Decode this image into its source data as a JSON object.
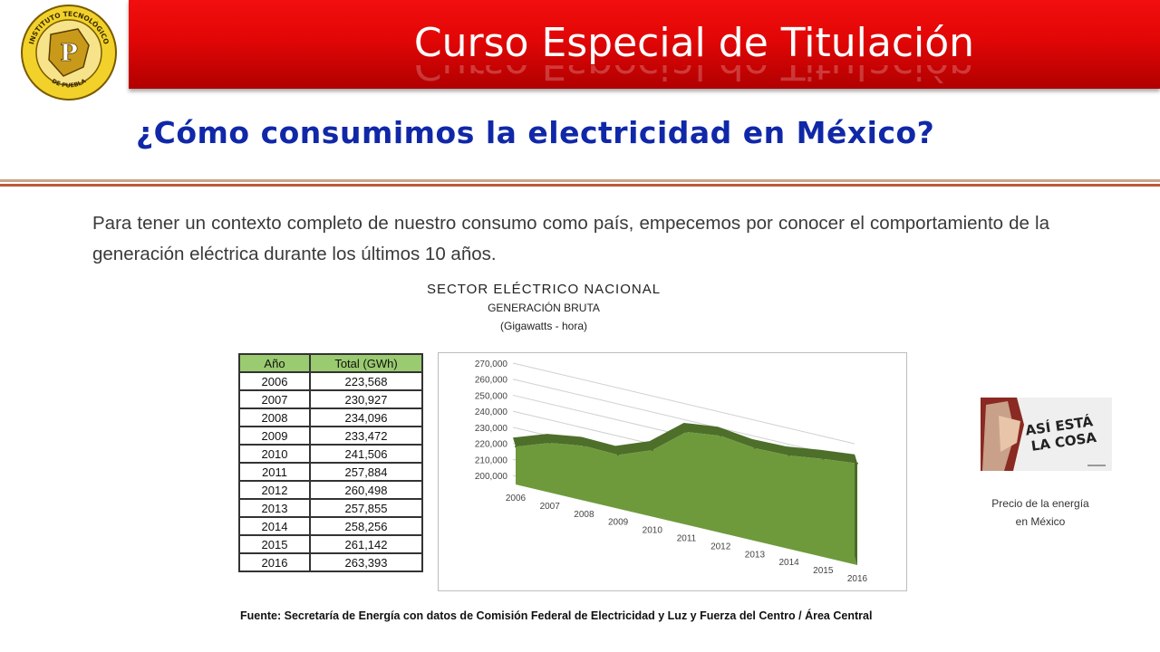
{
  "header": {
    "title": "Curso Especial de Titulación",
    "logo_text_top": "INSTITUTO TECNOLÓGICO",
    "logo_text_bottom": "DE PUEBLA"
  },
  "subtitle": "¿Cómo consumimos la electricidad en México?",
  "paragraph": "Para tener un contexto completo de nuestro consumo como país, empecemos por conocer el comportamiento de la generación eléctrica durante los últimos 10 años.",
  "figure": {
    "title": "SECTOR ELÉCTRICO NACIONAL",
    "subtitle": "GENERACIÓN BRUTA",
    "unit": "(Gigawatts - hora)",
    "source": "Fuente: Secretaría de Energía con datos de Comisión Federal de Electricidad y Luz y Fuerza del Centro / Área Central"
  },
  "table": {
    "headers": [
      "Año",
      "Total (GWh)"
    ],
    "rows": [
      [
        "2006",
        "223,568"
      ],
      [
        "2007",
        "230,927"
      ],
      [
        "2008",
        "234,096"
      ],
      [
        "2009",
        "233,472"
      ],
      [
        "2010",
        "241,506"
      ],
      [
        "2011",
        "257,884"
      ],
      [
        "2012",
        "260,498"
      ],
      [
        "2013",
        "257,855"
      ],
      [
        "2014",
        "258,256"
      ],
      [
        "2015",
        "261,142"
      ],
      [
        "2016",
        "263,393"
      ]
    ]
  },
  "chart_data": {
    "type": "area",
    "title": "",
    "xlabel": "",
    "ylabel": "",
    "x": [
      "2006",
      "2007",
      "2008",
      "2009",
      "2010",
      "2011",
      "2012",
      "2013",
      "2014",
      "2015",
      "2016"
    ],
    "series": [
      {
        "values": [
          223568,
          230927,
          234096,
          233472,
          241506,
          257884,
          260498,
          257855,
          258256,
          261142,
          263393
        ]
      }
    ],
    "yticks": [
      "200,000",
      "210,000",
      "220,000",
      "230,000",
      "240,000",
      "250,000",
      "260,000",
      "270,000"
    ],
    "ylim": [
      200000,
      270000
    ],
    "grid": true,
    "three_d": true,
    "colors": {
      "front": "#6e9a3c",
      "top": "#4d6f2a",
      "side": "#4a6b27",
      "grid": "#d0d0d0"
    }
  },
  "video": {
    "caption_line1": "Precio de la energía",
    "caption_line2": "en México",
    "thumbnail_text": "ASÍ ESTÁ LA COSA"
  },
  "colors": {
    "banner": "#e20606",
    "subtitle": "#1028a8",
    "table_header": "#9acb70"
  }
}
